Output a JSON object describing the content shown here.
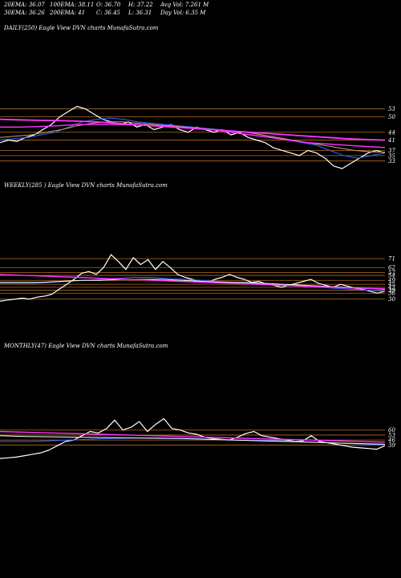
{
  "header": {
    "ema20": "20EMA: 36.07",
    "ema100": "100EMA: 38.11",
    "open": "O: 36.70",
    "high": "H: 37.22",
    "avg_vol": "Avg Vol: 7.261 M",
    "ema30": "30EMA: 36.26",
    "ema200": "200EMA: 41",
    "close": "C: 36.45",
    "low": "L: 36.31",
    "day_vol": "Day Vol: 6.35 M"
  },
  "colors": {
    "background": "#000000",
    "price": "#ffffff",
    "level_line": "#b36b1f",
    "ema_short": "#3366ff",
    "ema_mid": "#ffffff",
    "ema_long": "#ff33ff",
    "ema_band": "#c9a36b"
  },
  "chart_data": [
    {
      "type": "line",
      "title": "DAILY(250) Eagle  View  DVN  charts MunafaSutra.com",
      "tick_labels": [
        "53",
        "50",
        "44",
        "41",
        "37",
        "35",
        "33"
      ],
      "levels": [
        53,
        50,
        44,
        41,
        37,
        35,
        33
      ],
      "ylim": [
        30,
        56
      ],
      "series": [
        {
          "role": "price",
          "values": [
            40,
            41,
            40.5,
            42,
            43,
            45,
            47,
            50,
            52,
            54,
            53,
            51,
            49,
            48,
            47,
            48,
            46,
            47,
            45,
            46,
            47,
            45,
            44,
            46,
            45,
            44,
            45,
            43,
            44,
            42,
            41,
            40,
            38,
            37,
            36,
            35,
            37,
            36,
            34,
            31,
            30,
            32,
            34,
            36,
            37,
            36
          ]
        },
        {
          "role": "ema20",
          "values": [
            41,
            41.5,
            42,
            43,
            44,
            46,
            48,
            49,
            49.5,
            49,
            48,
            47.5,
            47,
            46.5,
            46,
            45.5,
            45,
            44.5,
            44,
            43,
            42,
            41,
            40,
            39,
            37,
            35,
            34,
            35,
            36
          ]
        },
        {
          "role": "ema30",
          "values": [
            42,
            42.5,
            43,
            44,
            45,
            46.5,
            47.5,
            48,
            48,
            47.5,
            47,
            46.5,
            46,
            45.5,
            45,
            44.5,
            44,
            43,
            42,
            41,
            40,
            39,
            38,
            37,
            36.5,
            36.3
          ]
        },
        {
          "role": "ema100",
          "values": [
            46,
            46,
            46.2,
            46.5,
            47,
            47,
            47,
            46.8,
            46.5,
            46,
            45.5,
            45,
            44,
            43,
            42,
            41,
            40,
            39.5,
            39,
            38.5,
            38.1
          ]
        },
        {
          "role": "ema200",
          "values": [
            49,
            48.8,
            48.6,
            48.5,
            48.3,
            48,
            47.5,
            47,
            46.5,
            46,
            45.5,
            45,
            44.5,
            44,
            43.5,
            43,
            42.5,
            42,
            41.5,
            41.2,
            41
          ]
        }
      ]
    },
    {
      "type": "line",
      "title": "WEEKLY(285               ) Eagle   View  DVN  charts MunafaSutra.com",
      "tick_labels": [
        "71",
        "62",
        "57",
        "54",
        "49",
        "45",
        "42",
        "39",
        "36",
        "30"
      ],
      "levels": [
        71,
        62,
        57,
        54,
        49,
        45,
        42,
        39,
        36,
        30
      ],
      "ylim": [
        24,
        76
      ],
      "series": [
        {
          "role": "price",
          "values": [
            28,
            29,
            30,
            31,
            30,
            32,
            33,
            35,
            40,
            45,
            50,
            56,
            58,
            55,
            62,
            75,
            68,
            60,
            72,
            65,
            70,
            60,
            68,
            62,
            55,
            52,
            50,
            48,
            47,
            50,
            52,
            55,
            52,
            50,
            47,
            48,
            45,
            44,
            42,
            44,
            46,
            48,
            50,
            46,
            44,
            42,
            45,
            43,
            41,
            40,
            38,
            36,
            38
          ]
        },
        {
          "role": "ema_short",
          "values": [
            46,
            46,
            46,
            47,
            48,
            49,
            50,
            51,
            52,
            52,
            51,
            50,
            49,
            48,
            47,
            46,
            45,
            44,
            43,
            42,
            41,
            40,
            39,
            38
          ]
        },
        {
          "role": "ema_mid",
          "values": [
            47,
            47,
            47,
            48,
            49,
            49,
            50,
            50,
            50,
            49,
            48,
            47,
            47,
            46,
            45,
            44,
            43,
            42,
            41,
            40
          ]
        },
        {
          "role": "ema_long",
          "values": [
            55,
            54,
            53,
            52,
            51,
            50,
            49,
            48,
            47,
            46,
            45,
            44,
            43,
            42,
            41,
            40.5
          ]
        }
      ]
    },
    {
      "type": "line",
      "title": "MONTHLY(47) Eagle  View  DVN  charts MunafaSutra.com",
      "tick_labels": [
        "60",
        "53",
        "46",
        "39"
      ],
      "levels": [
        60,
        53,
        46,
        39
      ],
      "ylim": [
        10,
        80
      ],
      "series": [
        {
          "role": "price",
          "values": [
            20,
            21,
            22,
            24,
            26,
            28,
            32,
            38,
            44,
            46,
            52,
            58,
            56,
            62,
            74,
            60,
            64,
            72,
            58,
            68,
            76,
            62,
            60,
            56,
            54,
            50,
            48,
            47,
            46,
            50,
            55,
            58,
            52,
            50,
            48,
            46,
            44,
            45,
            52,
            44,
            42,
            40,
            38,
            36,
            35,
            34,
            33,
            38
          ]
        },
        {
          "role": "ema_short",
          "values": [
            44,
            44,
            44,
            45,
            46,
            47,
            48,
            48.5,
            49,
            49,
            48.5,
            48,
            47,
            46.5,
            46,
            45.5,
            45,
            44,
            43,
            42,
            41,
            40,
            39
          ]
        },
        {
          "role": "ema_mid",
          "values": [
            52,
            51,
            50.5,
            50,
            49.5,
            49,
            48.5,
            48,
            47,
            46,
            45,
            44,
            43,
            42,
            41,
            40
          ]
        },
        {
          "role": "ema_long",
          "values": [
            58,
            57,
            56,
            55,
            54,
            53,
            52,
            51,
            50,
            49,
            48,
            47,
            46,
            45,
            44,
            43
          ]
        }
      ]
    }
  ]
}
